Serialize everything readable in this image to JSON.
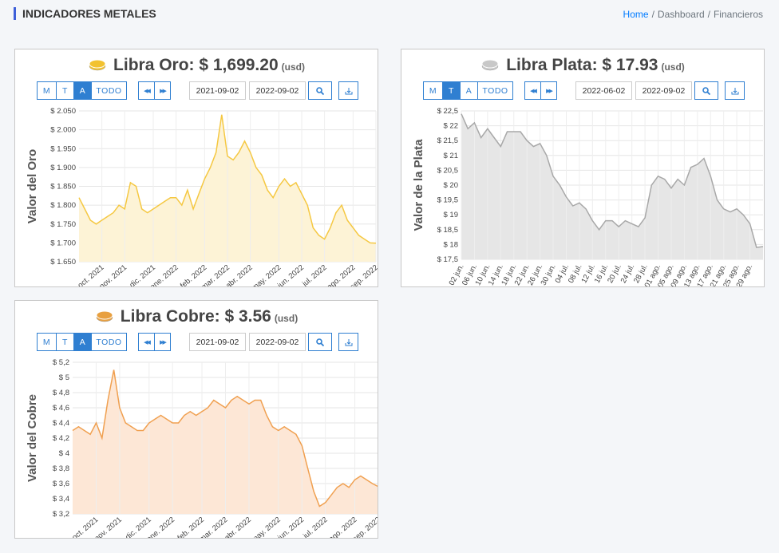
{
  "header": {
    "title": "INDICADORES METALES"
  },
  "breadcrumb": [
    "Home",
    "Dashboard",
    "Financieros"
  ],
  "panels": [
    {
      "title": "Libra Oro: $ 1,699.20",
      "unit": "(usd)",
      "icon_color": "#f2c230",
      "buttons": [
        {
          "label": "M",
          "active": false
        },
        {
          "label": "T",
          "active": false
        },
        {
          "label": "A",
          "active": true
        },
        {
          "label": "TODO",
          "active": false
        }
      ],
      "date_from": "2021-09-02",
      "date_to": "2022-09-02"
    },
    {
      "title": "Libra Plata: $ 17.93",
      "unit": "(usd)",
      "icon_color": "#c8c8c8",
      "buttons": [
        {
          "label": "M",
          "active": false
        },
        {
          "label": "T",
          "active": true
        },
        {
          "label": "A",
          "active": false
        },
        {
          "label": "TODO",
          "active": false
        }
      ],
      "date_from": "2022-06-02",
      "date_to": "2022-09-02"
    },
    {
      "title": "Libra Cobre: $ 3.56",
      "unit": "(usd)",
      "icon_color": "#e8a040",
      "buttons": [
        {
          "label": "M",
          "active": false
        },
        {
          "label": "T",
          "active": false
        },
        {
          "label": "A",
          "active": true
        },
        {
          "label": "TODO",
          "active": false
        }
      ],
      "date_from": "2021-09-02",
      "date_to": "2022-09-02"
    }
  ],
  "chart_data": [
    {
      "type": "line",
      "y_label": "Valor del Oro",
      "color": "#f5c842",
      "area_color": "#fdf3d6",
      "grid": true,
      "categories": [
        null,
        null,
        null,
        null,
        "oct. 2021",
        null,
        null,
        null,
        "nov. 2021",
        null,
        null,
        null,
        null,
        "dic. 2021",
        null,
        null,
        null,
        "ene. 2022",
        null,
        null,
        null,
        null,
        "feb. 2022",
        null,
        null,
        null,
        "mar. 2022",
        null,
        null,
        null,
        "abr. 2022",
        null,
        null,
        null,
        null,
        "may. 2022",
        null,
        null,
        null,
        "jun. 2022",
        null,
        null,
        null,
        "jul. 2022",
        null,
        null,
        null,
        null,
        "ago. 2022",
        null,
        null,
        null,
        "sep. 2022"
      ],
      "values": [
        1820,
        1790,
        1760,
        1750,
        1760,
        1770,
        1780,
        1800,
        1790,
        1860,
        1850,
        1790,
        1780,
        1790,
        1800,
        1810,
        1820,
        1820,
        1800,
        1840,
        1790,
        1830,
        1870,
        1900,
        1940,
        2040,
        1930,
        1920,
        1940,
        1970,
        1940,
        1900,
        1880,
        1840,
        1820,
        1850,
        1870,
        1850,
        1860,
        1830,
        1800,
        1740,
        1720,
        1710,
        1740,
        1780,
        1800,
        1760,
        1740,
        1720,
        1710,
        1700,
        1699
      ],
      "ylim": [
        1650,
        2050
      ],
      "yticks": [
        {
          "value": 1650,
          "label": "$ 1.650"
        },
        {
          "value": 1700,
          "label": "$ 1.700"
        },
        {
          "value": 1750,
          "label": "$ 1.750"
        },
        {
          "value": 1800,
          "label": "$ 1.800"
        },
        {
          "value": 1850,
          "label": "$ 1.850"
        },
        {
          "value": 1900,
          "label": "$ 1.900"
        },
        {
          "value": 1950,
          "label": "$ 1.950"
        },
        {
          "value": 2000,
          "label": "$ 2.000"
        },
        {
          "value": 2050,
          "label": "$ 2.050"
        }
      ]
    },
    {
      "type": "line",
      "y_label": "Valor de la Plata",
      "color": "#a8a8a8",
      "area_color": "#e6e6e6",
      "grid": true,
      "categories": [
        "02 jun.",
        null,
        "06 jun.",
        null,
        "10 jun.",
        null,
        "14 jun.",
        null,
        "18 jun.",
        null,
        "22 jun.",
        null,
        "26 jun.",
        null,
        "30 jun.",
        null,
        "04 jul.",
        null,
        "08 jul.",
        null,
        "12 jul.",
        null,
        "16 jul.",
        null,
        "20 jul.",
        null,
        "24 jul.",
        null,
        "28 jul.",
        null,
        "01 ago.",
        null,
        "05 ago.",
        null,
        "09 ago.",
        null,
        "13 ago.",
        null,
        "17 ago.",
        null,
        "21 ago.",
        null,
        "25 ago.",
        null,
        "29 ago.",
        null,
        null
      ],
      "values": [
        22.4,
        21.9,
        22.1,
        21.6,
        21.9,
        21.6,
        21.3,
        21.8,
        21.8,
        21.8,
        21.5,
        21.3,
        21.4,
        21.0,
        20.3,
        20.0,
        19.6,
        19.3,
        19.4,
        19.2,
        18.8,
        18.5,
        18.8,
        18.8,
        18.6,
        18.8,
        18.7,
        18.6,
        18.9,
        20.0,
        20.3,
        20.2,
        19.9,
        20.2,
        20.0,
        20.6,
        20.7,
        20.9,
        20.3,
        19.5,
        19.2,
        19.1,
        19.2,
        19.0,
        18.7,
        17.9,
        17.93
      ],
      "ylim": [
        17.5,
        22.5
      ],
      "yticks": [
        {
          "value": 17.5,
          "label": "$ 17,5"
        },
        {
          "value": 18,
          "label": "$ 18"
        },
        {
          "value": 18.5,
          "label": "$ 18,5"
        },
        {
          "value": 19,
          "label": "$ 19"
        },
        {
          "value": 19.5,
          "label": "$ 19,5"
        },
        {
          "value": 20,
          "label": "$ 20"
        },
        {
          "value": 20.5,
          "label": "$ 20,5"
        },
        {
          "value": 21,
          "label": "$ 21"
        },
        {
          "value": 21.5,
          "label": "$ 21,5"
        },
        {
          "value": 22,
          "label": "$ 22"
        },
        {
          "value": 22.5,
          "label": "$ 22,5"
        }
      ]
    },
    {
      "type": "line",
      "y_label": "Valor del Cobre",
      "color": "#f0a050",
      "area_color": "#fde7d6",
      "grid": true,
      "categories": [
        null,
        null,
        null,
        null,
        "oct. 2021",
        null,
        null,
        null,
        "nov. 2021",
        null,
        null,
        null,
        null,
        "dic. 2021",
        null,
        null,
        null,
        "ene. 2022",
        null,
        null,
        null,
        null,
        "feb. 2022",
        null,
        null,
        null,
        "mar. 2022",
        null,
        null,
        null,
        "abr. 2022",
        null,
        null,
        null,
        null,
        "may. 2022",
        null,
        null,
        null,
        "jun. 2022",
        null,
        null,
        null,
        "jul. 2022",
        null,
        null,
        null,
        null,
        "ago. 2022",
        null,
        null,
        null,
        "sep. 2022"
      ],
      "values": [
        4.3,
        4.35,
        4.3,
        4.25,
        4.4,
        4.2,
        4.7,
        5.1,
        4.6,
        4.4,
        4.35,
        4.3,
        4.3,
        4.4,
        4.45,
        4.5,
        4.45,
        4.4,
        4.4,
        4.5,
        4.55,
        4.5,
        4.55,
        4.6,
        4.7,
        4.65,
        4.6,
        4.7,
        4.75,
        4.7,
        4.65,
        4.7,
        4.7,
        4.5,
        4.35,
        4.3,
        4.35,
        4.3,
        4.25,
        4.1,
        3.8,
        3.5,
        3.3,
        3.35,
        3.45,
        3.55,
        3.6,
        3.55,
        3.65,
        3.7,
        3.65,
        3.6,
        3.56
      ],
      "ylim": [
        3.2,
        5.2
      ],
      "yticks": [
        {
          "value": 3.2,
          "label": "$ 3,2"
        },
        {
          "value": 3.4,
          "label": "$ 3,4"
        },
        {
          "value": 3.6,
          "label": "$ 3,6"
        },
        {
          "value": 3.8,
          "label": "$ 3,8"
        },
        {
          "value": 4,
          "label": "$ 4"
        },
        {
          "value": 4.2,
          "label": "$ 4,2"
        },
        {
          "value": 4.4,
          "label": "$ 4,4"
        },
        {
          "value": 4.6,
          "label": "$ 4,6"
        },
        {
          "value": 4.8,
          "label": "$ 4,8"
        },
        {
          "value": 5,
          "label": "$ 5"
        },
        {
          "value": 5.2,
          "label": "$ 5,2"
        }
      ]
    }
  ]
}
